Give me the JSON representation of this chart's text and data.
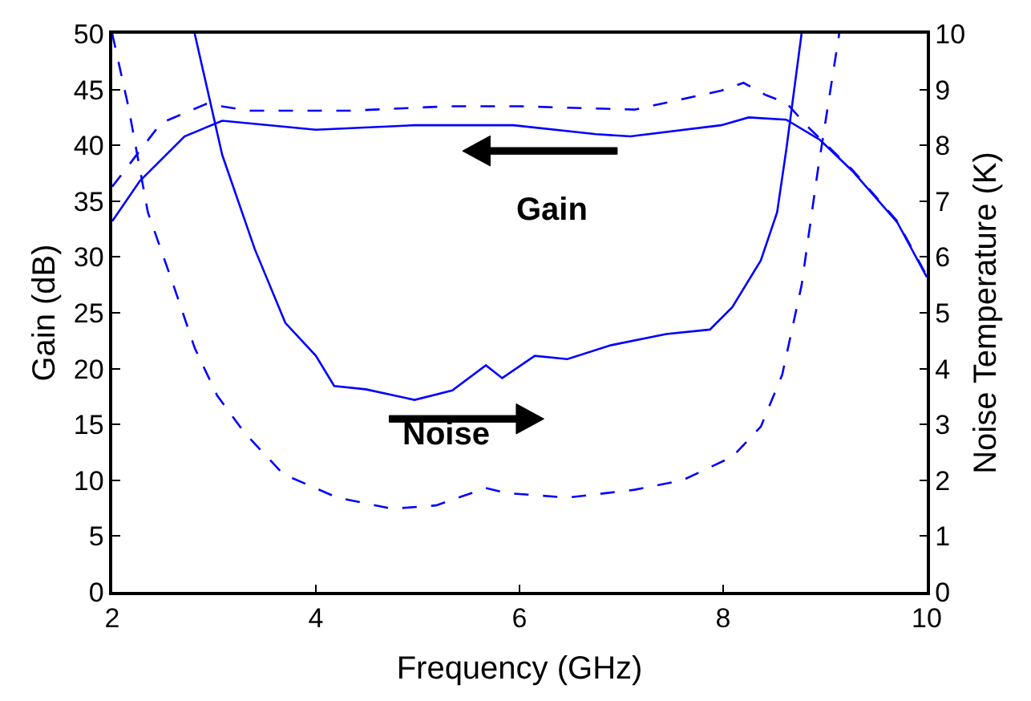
{
  "chart_data": {
    "type": "line",
    "xlabel": "Frequency (GHz)",
    "ylabel": "Gain (dB)",
    "y2label": "Noise Temperature (K)",
    "xlim": [
      2,
      10
    ],
    "xticks": [
      2,
      4,
      6,
      8,
      10
    ],
    "ylim": [
      0,
      50
    ],
    "yticks": [
      0,
      5,
      10,
      15,
      20,
      25,
      30,
      35,
      40,
      45,
      50
    ],
    "y2lim": [
      0,
      10
    ],
    "y2ticks": [
      0,
      1,
      2,
      3,
      4,
      5,
      6,
      7,
      8,
      9,
      10
    ],
    "marker": "none",
    "annotations": [
      "Gain",
      "Noise"
    ],
    "series": [
      {
        "color": "#0000ff",
        "line_style": "solid",
        "x": [
          2.0,
          2.27,
          2.71,
          3.08,
          4.0,
          4.97,
          5.94,
          6.75,
          7.09,
          7.98,
          8.25,
          8.62,
          8.95,
          9.27,
          9.71,
          10.0
        ],
        "values": [
          33.2,
          36.8,
          40.8,
          42.2,
          41.4,
          41.8,
          41.8,
          41.0,
          40.8,
          41.8,
          42.5,
          42.3,
          40.5,
          37.7,
          33.1,
          28.2
        ]
      },
      {
        "color": "#0000ff",
        "line_style": "dashed",
        "x": [
          2.0,
          2.48,
          2.92,
          3.36,
          4.33,
          5.3,
          6.0,
          7.13,
          7.98,
          8.2,
          8.42,
          8.62,
          8.85,
          9.27,
          9.71,
          10.0
        ],
        "values": [
          36.3,
          42.0,
          43.7,
          43.1,
          43.1,
          43.5,
          43.5,
          43.2,
          44.9,
          45.6,
          44.5,
          43.8,
          41.5,
          37.8,
          33.2,
          28.3
        ]
      },
      {
        "color": "#0000ff",
        "line_style": "solid",
        "axis": "y2",
        "x": [
          2.81,
          3.08,
          3.4,
          3.7,
          4.0,
          4.18,
          4.49,
          4.97,
          5.34,
          5.67,
          5.83,
          6.15,
          6.47,
          6.9,
          7.44,
          7.87,
          8.09,
          8.37,
          8.53,
          8.62,
          8.77
        ],
        "values": [
          10.0,
          7.83,
          6.14,
          4.82,
          4.23,
          3.69,
          3.63,
          3.44,
          3.61,
          4.06,
          3.83,
          4.23,
          4.17,
          4.42,
          4.62,
          4.7,
          5.1,
          5.94,
          6.8,
          7.92,
          10.0
        ]
      },
      {
        "color": "#0000ff",
        "line_style": "dashed",
        "axis": "y2",
        "x": [
          2.0,
          2.16,
          2.35,
          2.6,
          2.81,
          3.03,
          3.3,
          3.68,
          4.21,
          4.75,
          5.18,
          5.67,
          5.88,
          6.47,
          7.13,
          7.6,
          8.09,
          8.37,
          8.58,
          8.77,
          8.93,
          9.14
        ],
        "values": [
          10.0,
          8.68,
          6.8,
          5.5,
          4.37,
          3.52,
          2.85,
          2.11,
          1.69,
          1.49,
          1.55,
          1.86,
          1.77,
          1.69,
          1.83,
          2.0,
          2.42,
          2.96,
          3.89,
          5.49,
          7.55,
          10.0
        ]
      }
    ]
  }
}
